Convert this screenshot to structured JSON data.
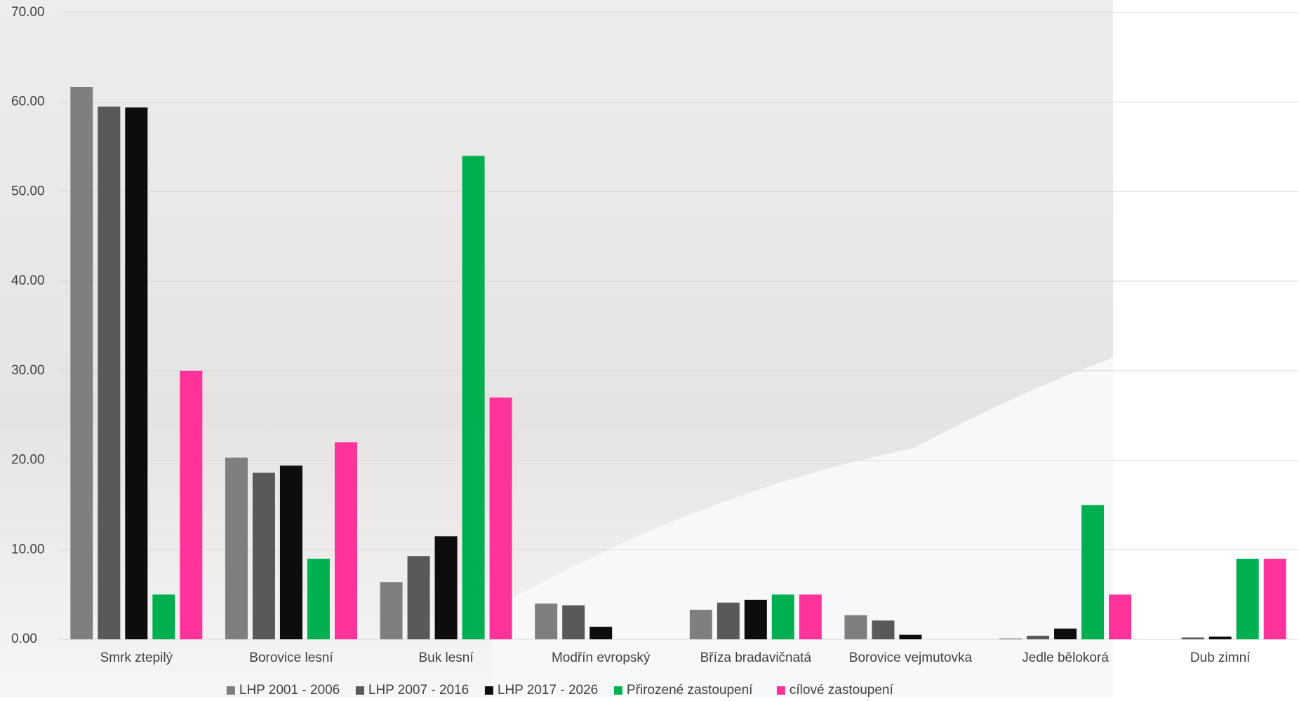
{
  "chart_data": {
    "type": "bar",
    "categories": [
      "Smrk ztepilý",
      "Borovice lesní",
      "Buk lesní",
      "Modřín evropský",
      "Bříza bradavičnatá",
      "Borovice vejmutovka",
      "Jedle bělokorá",
      "Dub zimní"
    ],
    "series": [
      {
        "name": "LHP 2001 - 2006",
        "color": "#7f7f7f",
        "values": [
          61.7,
          20.3,
          6.4,
          4.0,
          3.3,
          2.7,
          0.1,
          0
        ]
      },
      {
        "name": "LHP 2007 - 2016",
        "color": "#595959",
        "values": [
          59.5,
          18.6,
          9.3,
          3.8,
          4.1,
          2.1,
          0.4,
          0.2
        ]
      },
      {
        "name": "LHP 2017 - 2026",
        "color": "#0d0d0d",
        "values": [
          59.4,
          19.4,
          11.5,
          1.4,
          4.4,
          0.5,
          1.2,
          0.3
        ]
      },
      {
        "name": "Přirozené zastoupení",
        "color": "#00b050",
        "values": [
          5.0,
          9.0,
          54.0,
          0,
          5.0,
          0,
          15.0,
          9.0
        ]
      },
      {
        "name": "cílové zastoupení",
        "color": "#ff3399",
        "values": [
          30.0,
          22.0,
          27.0,
          0,
          5.0,
          0,
          5.0,
          9.0
        ]
      }
    ],
    "ylim": [
      0,
      70
    ],
    "yticks": [
      {
        "value": 0,
        "label": "0.00"
      },
      {
        "value": 10,
        "label": "10.00"
      },
      {
        "value": 20,
        "label": "20.00"
      },
      {
        "value": 30,
        "label": "30.00"
      },
      {
        "value": 40,
        "label": "40.00"
      },
      {
        "value": 50,
        "label": "50.00"
      },
      {
        "value": 60,
        "label": "60.00"
      },
      {
        "value": 70,
        "label": "70.00"
      }
    ],
    "grid": true,
    "legend": "bottom"
  }
}
